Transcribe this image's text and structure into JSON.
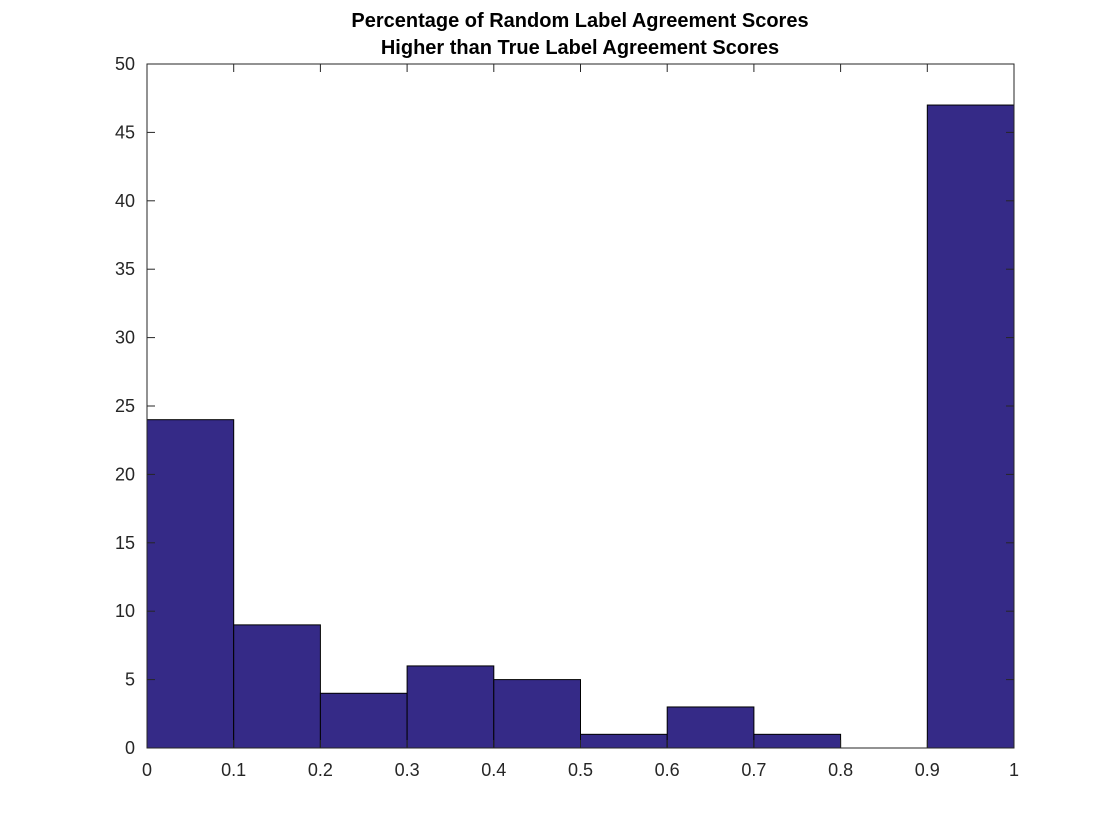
{
  "chart_data": {
    "type": "bar",
    "title": [
      "Percentage of Random Label Agreement Scores",
      "Higher than True Label Agreement Scores"
    ],
    "xlabel": "",
    "ylabel": "",
    "bin_edges": [
      0,
      0.1,
      0.2,
      0.3,
      0.4,
      0.5,
      0.6,
      0.7,
      0.8,
      0.9,
      1
    ],
    "values": [
      24,
      9,
      4,
      6,
      5,
      1,
      3,
      1,
      0,
      47
    ],
    "xlim": [
      0,
      1
    ],
    "ylim": [
      0,
      50
    ],
    "x_ticks": [
      0,
      0.1,
      0.2,
      0.3,
      0.4,
      0.5,
      0.6,
      0.7,
      0.8,
      0.9,
      1
    ],
    "x_tick_labels": [
      "0",
      "0.1",
      "0.2",
      "0.3",
      "0.4",
      "0.5",
      "0.6",
      "0.7",
      "0.8",
      "0.9",
      "1"
    ],
    "y_ticks": [
      0,
      5,
      10,
      15,
      20,
      25,
      30,
      35,
      40,
      45,
      50
    ],
    "y_tick_labels": [
      "0",
      "5",
      "10",
      "15",
      "20",
      "25",
      "30",
      "35",
      "40",
      "45",
      "50"
    ],
    "grid": false,
    "legend": false,
    "bar_color": "#352a87",
    "edge_color": "#000000"
  }
}
